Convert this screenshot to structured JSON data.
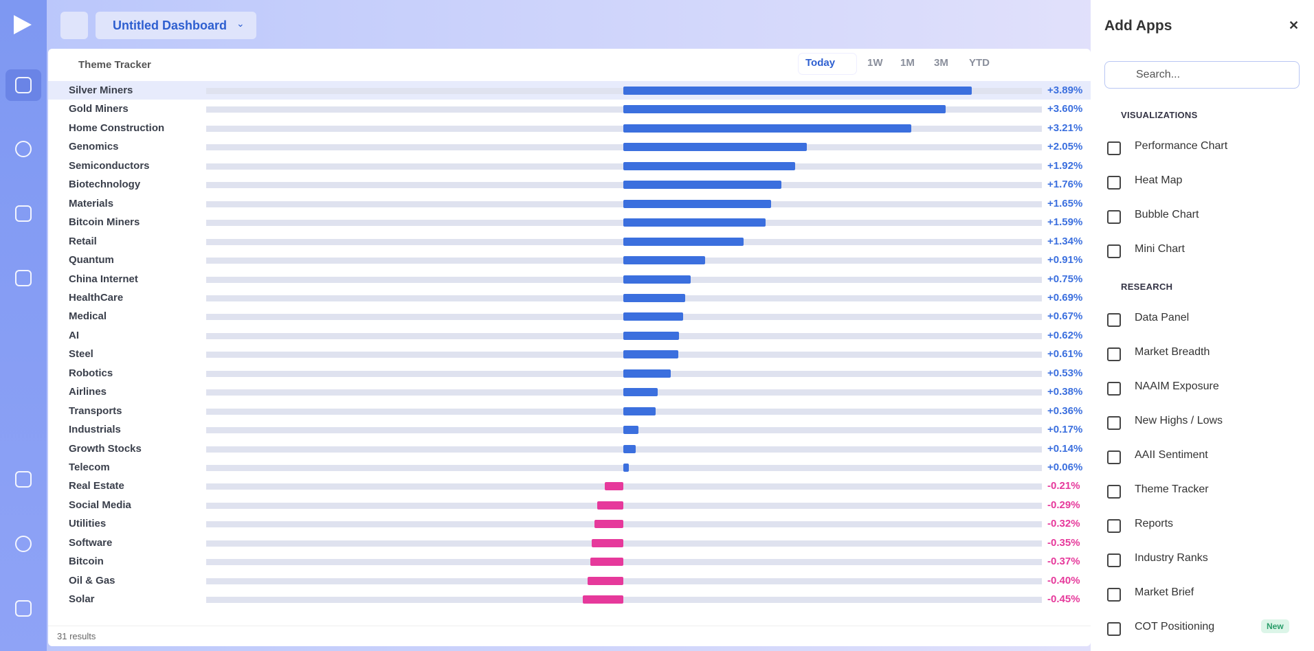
{
  "header": {
    "dashboard_title": "Untitled Dashboard"
  },
  "tracker": {
    "title": "Theme Tracker",
    "ranges": [
      "Today",
      "1W",
      "1M",
      "3M",
      "YTD"
    ],
    "footer": "31 results",
    "rows": [
      {
        "name": "Silver Miners",
        "value": 3.89,
        "value_label": "+3.89%"
      },
      {
        "name": "Gold Miners",
        "value": 3.6,
        "value_label": "+3.60%"
      },
      {
        "name": "Home Construction",
        "value": 3.21,
        "value_label": "+3.21%"
      },
      {
        "name": "Genomics",
        "value": 2.05,
        "value_label": "+2.05%"
      },
      {
        "name": "Semiconductors",
        "value": 1.92,
        "value_label": "+1.92%"
      },
      {
        "name": "Biotechnology",
        "value": 1.76,
        "value_label": "+1.76%"
      },
      {
        "name": "Materials",
        "value": 1.65,
        "value_label": "+1.65%"
      },
      {
        "name": "Bitcoin Miners",
        "value": 1.59,
        "value_label": "+1.59%"
      },
      {
        "name": "Retail",
        "value": 1.34,
        "value_label": "+1.34%"
      },
      {
        "name": "Quantum",
        "value": 0.91,
        "value_label": "+0.91%"
      },
      {
        "name": "China Internet",
        "value": 0.75,
        "value_label": "+0.75%"
      },
      {
        "name": "HealthCare",
        "value": 0.69,
        "value_label": "+0.69%"
      },
      {
        "name": "Medical",
        "value": 0.67,
        "value_label": "+0.67%"
      },
      {
        "name": "AI",
        "value": 0.62,
        "value_label": "+0.62%"
      },
      {
        "name": "Steel",
        "value": 0.61,
        "value_label": "+0.61%"
      },
      {
        "name": "Robotics",
        "value": 0.53,
        "value_label": "+0.53%"
      },
      {
        "name": "Airlines",
        "value": 0.38,
        "value_label": "+0.38%"
      },
      {
        "name": "Transports",
        "value": 0.36,
        "value_label": "+0.36%"
      },
      {
        "name": "Industrials",
        "value": 0.17,
        "value_label": "+0.17%"
      },
      {
        "name": "Growth Stocks",
        "value": 0.14,
        "value_label": "+0.14%"
      },
      {
        "name": "Telecom",
        "value": 0.06,
        "value_label": "+0.06%"
      },
      {
        "name": "Real Estate",
        "value": -0.21,
        "value_label": "-0.21%"
      },
      {
        "name": "Social Media",
        "value": -0.29,
        "value_label": "-0.29%"
      },
      {
        "name": "Utilities",
        "value": -0.32,
        "value_label": "-0.32%"
      },
      {
        "name": "Software",
        "value": -0.35,
        "value_label": "-0.35%"
      },
      {
        "name": "Bitcoin",
        "value": -0.37,
        "value_label": "-0.37%"
      },
      {
        "name": "Oil & Gas",
        "value": -0.4,
        "value_label": "-0.40%"
      },
      {
        "name": "Solar",
        "value": -0.45,
        "value_label": "-0.45%"
      }
    ]
  },
  "apps": {
    "title": "Add Apps",
    "close": "✕",
    "search_placeholder": "Search...",
    "sections": [
      {
        "title": "VISUALIZATIONS",
        "items": [
          {
            "label": "Performance Chart"
          },
          {
            "label": "Heat Map"
          },
          {
            "label": "Bubble Chart"
          },
          {
            "label": "Mini Chart"
          }
        ]
      },
      {
        "title": "RESEARCH",
        "items": [
          {
            "label": "Data Panel"
          },
          {
            "label": "Market Breadth"
          },
          {
            "label": "NAAIM Exposure"
          },
          {
            "label": "New Highs / Lows"
          },
          {
            "label": "AAII Sentiment"
          },
          {
            "label": "Theme Tracker"
          },
          {
            "label": "Reports"
          },
          {
            "label": "Industry Ranks"
          },
          {
            "label": "Market Brief"
          },
          {
            "label": "COT Positioning",
            "badge": "New"
          }
        ]
      }
    ]
  }
}
